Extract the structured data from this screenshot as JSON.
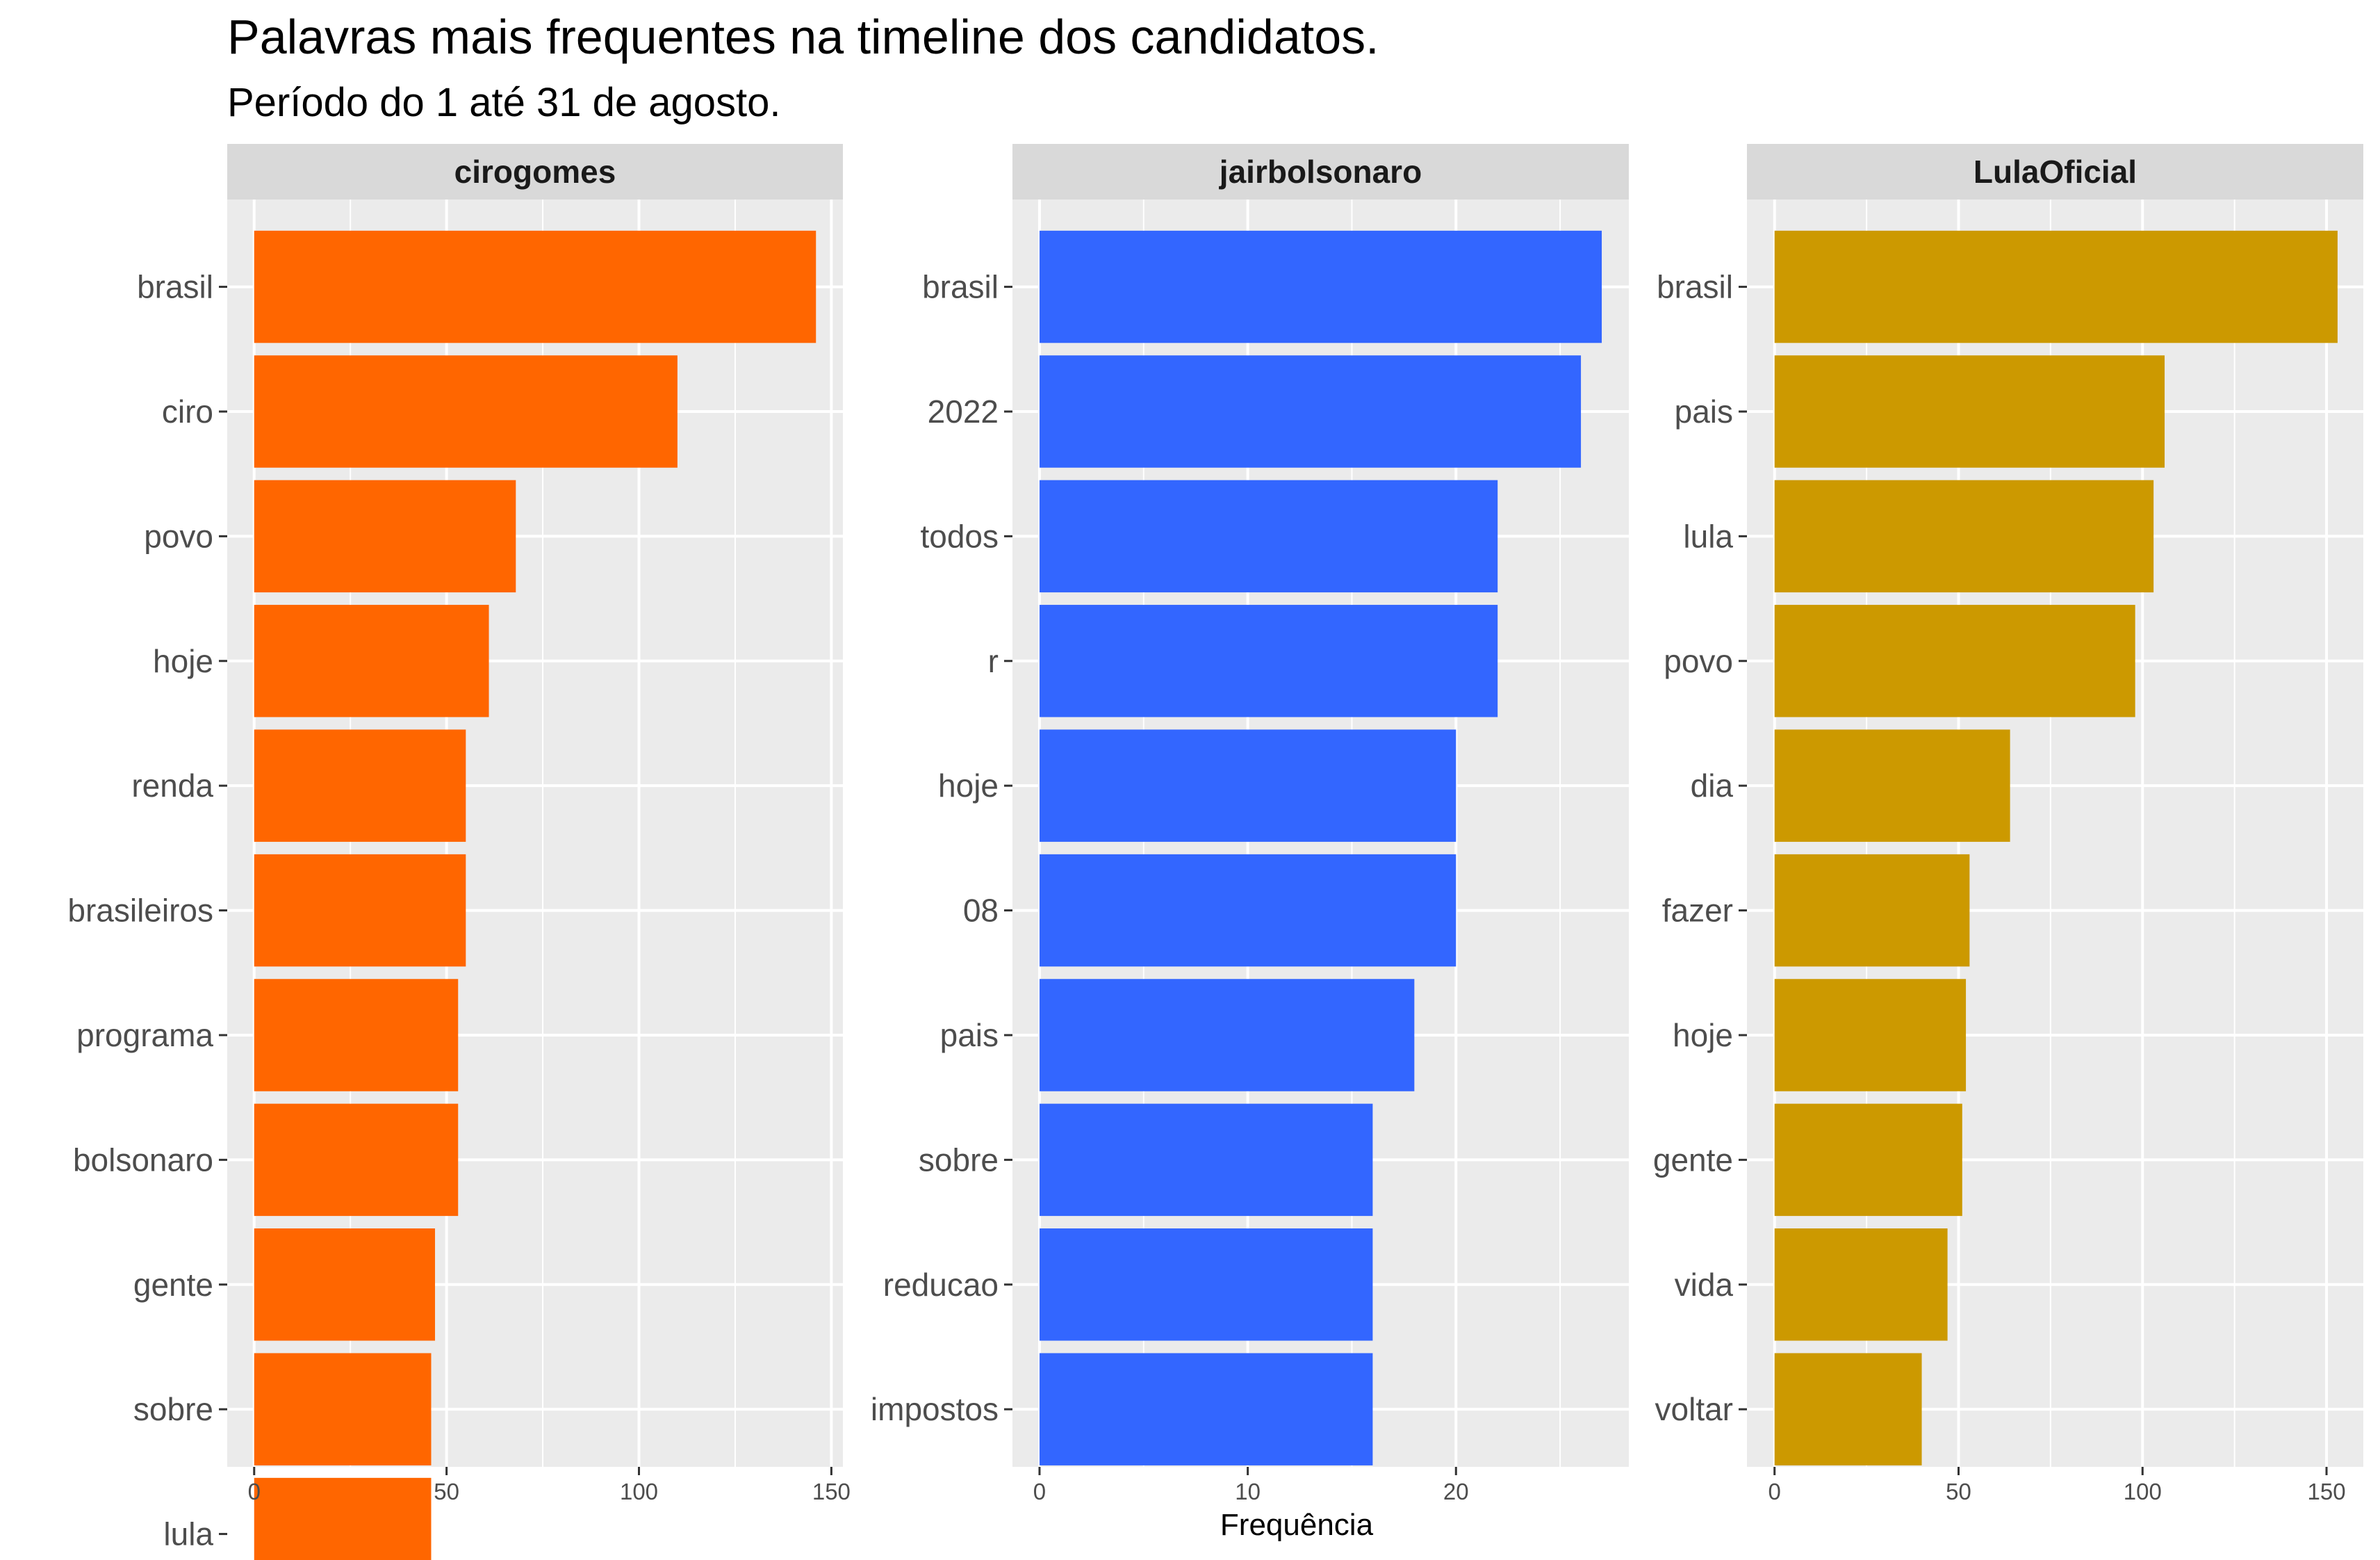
{
  "chart_data": {
    "type": "bar",
    "orientation": "horizontal",
    "title": "Palavras mais frequentes na timeline dos candidatos.",
    "subtitle": "Período do 1 até 31 de agosto.",
    "xlabel": "Frequência",
    "ylabel": "",
    "grid": true,
    "panels": [
      {
        "name": "cirogomes",
        "color": "#FF6600",
        "xlim": [
          -7,
          153
        ],
        "ticks": [
          0,
          50,
          100,
          150
        ],
        "minor_ticks": [
          25,
          75,
          125
        ],
        "categories": [
          "brasil",
          "ciro",
          "povo",
          "hoje",
          "renda",
          "brasileiros",
          "programa",
          "bolsonaro",
          "gente",
          "sobre",
          "lula"
        ],
        "values": [
          146,
          110,
          68,
          61,
          55,
          55,
          53,
          53,
          47,
          46,
          46
        ]
      },
      {
        "name": "jairbolsonaro",
        "color": "#3366FF",
        "xlim": [
          -1.3,
          28.3
        ],
        "ticks": [
          0,
          10,
          20
        ],
        "minor_ticks": [
          5,
          15,
          25
        ],
        "categories": [
          "brasil",
          "2022",
          "todos",
          "r",
          "hoje",
          "08",
          "pais",
          "sobre",
          "reducao",
          "impostos"
        ],
        "values": [
          27,
          26,
          22,
          22,
          20,
          20,
          18,
          16,
          16,
          16
        ]
      },
      {
        "name": "LulaOficial",
        "color": "#CC9900",
        "xlim": [
          -7.5,
          160
        ],
        "ticks": [
          0,
          50,
          100,
          150
        ],
        "minor_ticks": [
          25,
          75,
          125
        ],
        "categories": [
          "brasil",
          "pais",
          "lula",
          "povo",
          "dia",
          "fazer",
          "hoje",
          "gente",
          "vida",
          "voltar"
        ],
        "values": [
          153,
          106,
          103,
          98,
          64,
          53,
          52,
          51,
          47,
          40
        ]
      }
    ]
  }
}
